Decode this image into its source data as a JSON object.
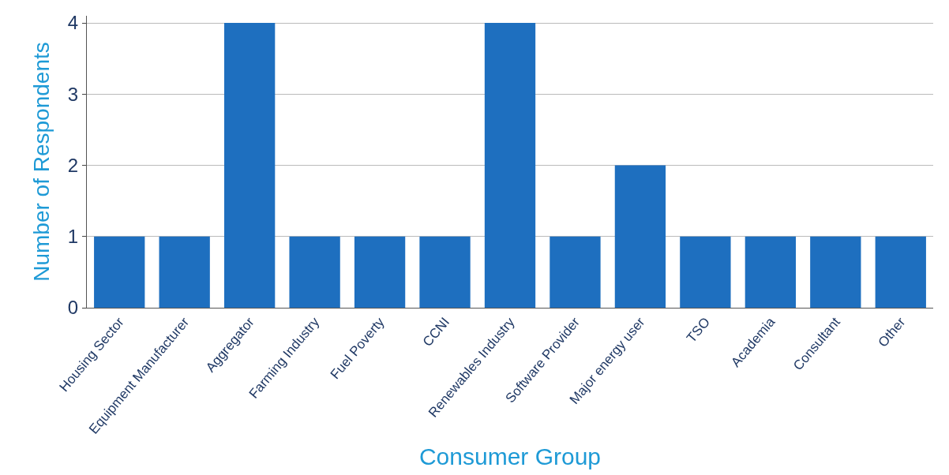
{
  "chart_data": {
    "type": "bar",
    "xlabel": "Consumer Group",
    "ylabel": "Number of Respondents",
    "categories": [
      "Housing Sector",
      "Equipment Manufacturer",
      "Aggregator",
      "Farming Industry",
      "Fuel Poverty",
      "CCNI",
      "Renewables Industry",
      "Software Provider",
      "Major energy user",
      "TSO",
      "Academia",
      "Consultant",
      "Other"
    ],
    "values": [
      1,
      1,
      4,
      1,
      1,
      1,
      4,
      1,
      2,
      1,
      1,
      1,
      1
    ],
    "color": "#1e6fbf",
    "ylim": [
      0,
      4.1
    ],
    "yticks": [
      0,
      1,
      2,
      3,
      4
    ],
    "grid": "y"
  }
}
